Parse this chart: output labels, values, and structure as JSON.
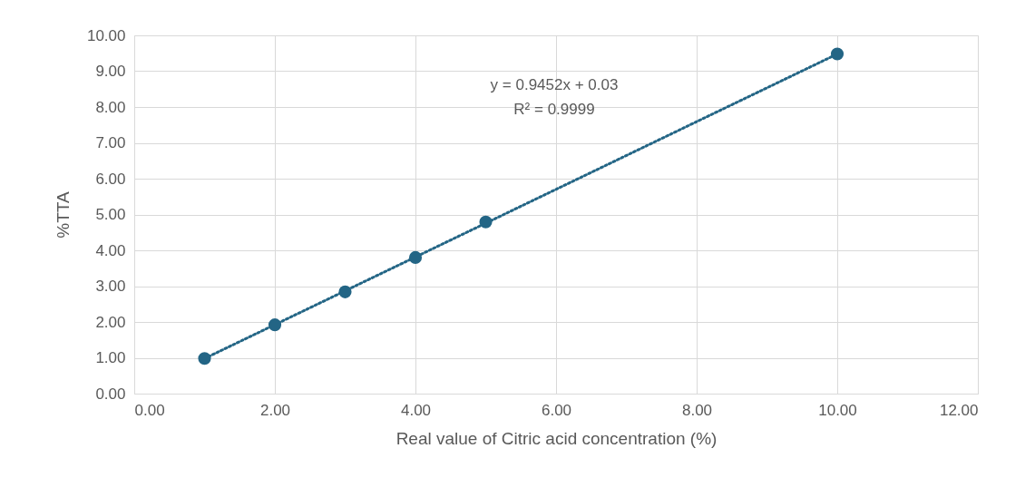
{
  "chart_data": {
    "type": "scatter",
    "xlabel": "Real value of Citric acid concentration (%)",
    "ylabel": "%TTA",
    "series": [
      {
        "color": "#236585",
        "x": [
          1,
          2,
          3,
          4,
          5,
          10
        ],
        "values": [
          0.98,
          1.92,
          2.84,
          3.8,
          4.79,
          9.48
        ]
      },
      {
        "type": "line",
        "color": "#236585",
        "x": [
          1,
          10
        ],
        "values": [
          0.98,
          9.48
        ],
        "line_style": "dotted",
        "marker": "none"
      }
    ],
    "annotations": [
      "y = 0.9452x + 0.03",
      "R² = 0.9999"
    ],
    "xlim": [
      0,
      12
    ],
    "xticks": [
      {
        "value": 0,
        "label": "0.00"
      },
      {
        "value": 2,
        "label": "2.00"
      },
      {
        "value": 4,
        "label": "4.00"
      },
      {
        "value": 6,
        "label": "6.00"
      },
      {
        "value": 8,
        "label": "8.00"
      },
      {
        "value": 10,
        "label": "10.00"
      },
      {
        "value": 12,
        "label": "12.00"
      }
    ],
    "ylim": [
      0,
      10
    ],
    "yticks": [
      {
        "value": 0,
        "label": "0.00"
      },
      {
        "value": 1,
        "label": "1.00"
      },
      {
        "value": 2,
        "label": "2.00"
      },
      {
        "value": 3,
        "label": "3.00"
      },
      {
        "value": 4,
        "label": "4.00"
      },
      {
        "value": 5,
        "label": "5.00"
      },
      {
        "value": 6,
        "label": "6.00"
      },
      {
        "value": 7,
        "label": "7.00"
      },
      {
        "value": 8,
        "label": "8.00"
      },
      {
        "value": 9,
        "label": "9.00"
      },
      {
        "value": 10,
        "label": "10.00"
      }
    ],
    "grid": true,
    "marker": "circle"
  }
}
